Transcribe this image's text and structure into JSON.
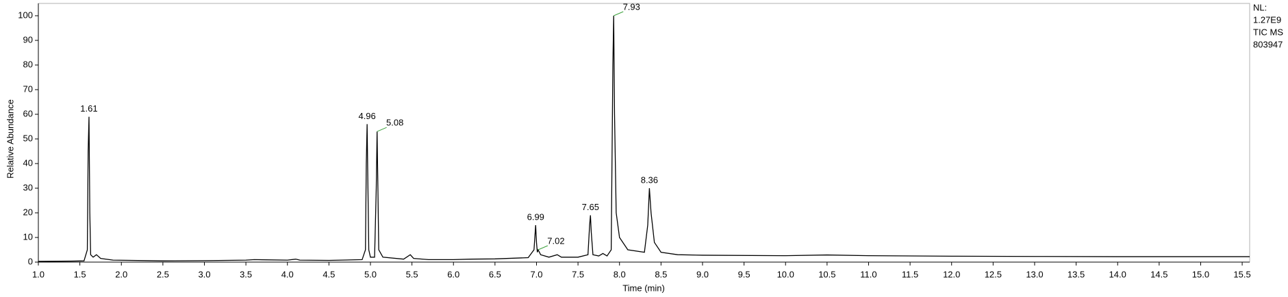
{
  "chart_data": {
    "type": "line",
    "y_label": "Relative Abundance",
    "x_label": "Time (min)",
    "side_info": [
      "NL:",
      "1.27E9",
      "TIC  MS",
      "803947"
    ],
    "xlim": [
      1.0,
      15.59
    ],
    "ylim": [
      0,
      100
    ],
    "xticks": [
      {
        "value": 1,
        "label": "1.0"
      },
      1.5,
      {
        "value": 2,
        "label": "2.0"
      },
      2.5,
      {
        "value": 3,
        "label": "3.0"
      },
      3.5,
      {
        "value": 4,
        "label": "4.0"
      },
      4.5,
      {
        "value": 5,
        "label": "5.0"
      },
      5.5,
      {
        "value": 6,
        "label": "6.0"
      },
      6.5,
      {
        "value": 7,
        "label": "7.0"
      },
      7.5,
      {
        "value": 8,
        "label": "8.0"
      },
      8.5,
      {
        "value": 9,
        "label": "9.0"
      },
      9.5,
      {
        "value": 10,
        "label": "10.0"
      },
      10.5,
      {
        "value": 11,
        "label": "11.0"
      },
      11.5,
      {
        "value": 12,
        "label": "12.0"
      },
      12.5,
      {
        "value": 13,
        "label": "13.0"
      },
      13.5,
      {
        "value": 14,
        "label": "14.0"
      },
      14.5,
      {
        "value": 15,
        "label": "15.0"
      },
      15.5
    ],
    "yticks": [
      0,
      10,
      20,
      30,
      40,
      50,
      60,
      70,
      80,
      90,
      100
    ],
    "series": [
      {
        "color": "#000000",
        "x": [
          1.0,
          1.4,
          1.55,
          1.59,
          1.6,
          1.61,
          1.62,
          1.63,
          1.66,
          1.7,
          1.75,
          1.9,
          2.5,
          3.0,
          3.5,
          3.6,
          4.0,
          4.1,
          4.15,
          4.5,
          4.9,
          4.94,
          4.95,
          4.96,
          4.97,
          4.98,
          5.0,
          5.05,
          5.07,
          5.08,
          5.09,
          5.1,
          5.15,
          5.4,
          5.48,
          5.52,
          5.7,
          6.0,
          6.2,
          6.5,
          6.9,
          6.97,
          6.99,
          7.0,
          7.01,
          7.02,
          7.05,
          7.15,
          7.25,
          7.3,
          7.5,
          7.62,
          7.64,
          7.65,
          7.66,
          7.68,
          7.75,
          7.8,
          7.85,
          7.9,
          7.92,
          7.93,
          7.94,
          7.96,
          8.0,
          8.1,
          8.3,
          8.34,
          8.36,
          8.38,
          8.42,
          8.5,
          8.7,
          9.0,
          10.0,
          10.5,
          11.0,
          12.0,
          13.0,
          14.0,
          15.0,
          15.59
        ],
        "values": [
          0.3,
          0.4,
          0.5,
          5,
          45,
          59,
          20,
          3,
          2,
          3,
          1.5,
          0.8,
          0.5,
          0.6,
          0.8,
          1.0,
          0.8,
          1.2,
          0.8,
          0.7,
          1.0,
          5,
          40,
          56,
          30,
          5,
          2,
          2,
          30,
          53,
          30,
          5,
          2,
          1.2,
          3,
          1.5,
          1,
          1,
          1.2,
          1.3,
          1.8,
          5,
          15,
          8,
          4,
          5,
          3,
          2,
          3,
          2,
          2,
          3,
          15,
          19,
          12,
          3,
          2.5,
          3.5,
          2.5,
          5,
          80,
          100,
          60,
          20,
          10,
          5,
          4,
          15,
          30,
          20,
          8,
          4,
          3,
          2.8,
          2.6,
          2.9,
          2.6,
          2.4,
          2.3,
          2.2,
          2.2,
          2.2
        ]
      }
    ],
    "annotations": [
      {
        "x": 1.61,
        "y": 59
      },
      {
        "x": 4.96,
        "y": 56
      },
      {
        "x": 5.08,
        "y": 53
      },
      {
        "x": 6.99,
        "y": 15
      },
      {
        "x": 7.02,
        "y": 5
      },
      {
        "x": 7.65,
        "y": 19
      },
      {
        "x": 7.93,
        "y": 100
      },
      {
        "x": 8.36,
        "y": 30
      }
    ]
  }
}
